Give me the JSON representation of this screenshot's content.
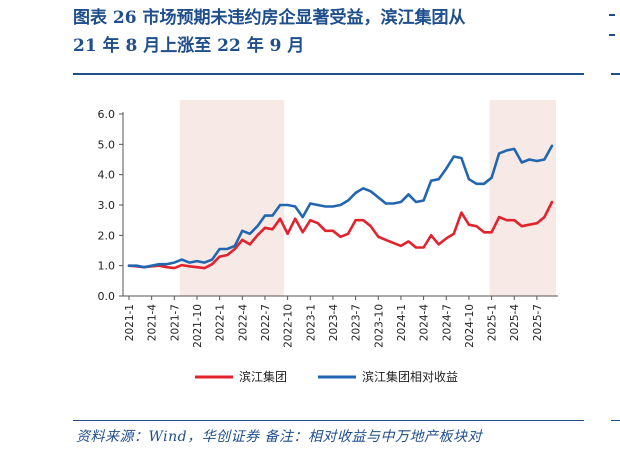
{
  "report": {
    "title_line1": "图表 26   市场预期未违约房企显著受益，滨江集团从",
    "title_line2": "21 年 8 月上涨至 22 年 9 月",
    "source": "资料来源：Wind，华创证券   备注：相对收益与中万地产板块对"
  },
  "colors": {
    "brand": "#1f4e8c",
    "series_red": "#e2232d",
    "series_blue": "#2166b0",
    "shade": "#f7e9e6",
    "axis": "#555555"
  },
  "chart_data": {
    "type": "line",
    "title": "",
    "xlabel": "",
    "ylabel": "",
    "ylim": [
      0,
      6
    ],
    "yticks": [
      "0.0",
      "1.0",
      "2.0",
      "3.0",
      "4.0",
      "5.0",
      "6.0"
    ],
    "xtick_labels": [
      "2021-1",
      "2021-4",
      "2021-7",
      "2021-10",
      "2022-1",
      "2022-4",
      "2022-7",
      "2022-10",
      "2023-1",
      "2023-4",
      "2023-7",
      "2023-10",
      "2024-1",
      "2024-4",
      "2024-7",
      "2024-10",
      "2025-1",
      "2025-4",
      "2025-7"
    ],
    "grid": false,
    "legend_position": "bottom",
    "x": [
      "2021-01",
      "2021-02",
      "2021-03",
      "2021-04",
      "2021-05",
      "2021-06",
      "2021-07",
      "2021-08",
      "2021-09",
      "2021-10",
      "2021-11",
      "2021-12",
      "2022-01",
      "2022-02",
      "2022-03",
      "2022-04",
      "2022-05",
      "2022-06",
      "2022-07",
      "2022-08",
      "2022-09",
      "2022-10",
      "2022-11",
      "2022-12",
      "2023-01",
      "2023-02",
      "2023-03",
      "2023-04",
      "2023-05",
      "2023-06",
      "2023-07",
      "2023-08",
      "2023-09",
      "2023-10",
      "2023-11",
      "2023-12",
      "2024-01",
      "2024-02",
      "2024-03",
      "2024-04",
      "2024-05",
      "2024-06",
      "2024-07",
      "2024-08",
      "2024-09",
      "2024-10",
      "2024-11",
      "2024-12",
      "2025-01",
      "2025-02",
      "2025-03",
      "2025-04",
      "2025-05",
      "2025-06",
      "2025-07",
      "2025-08",
      "2025-09"
    ],
    "shaded_ranges": [
      [
        "2021-08",
        "2022-09"
      ],
      [
        "2025-01",
        "2025-09"
      ]
    ],
    "series": [
      {
        "name": "滨江集团",
        "color": "#e2232d",
        "values": [
          1.0,
          0.98,
          0.95,
          0.98,
          1.0,
          0.95,
          0.92,
          1.02,
          0.98,
          0.95,
          0.92,
          1.05,
          1.3,
          1.35,
          1.55,
          1.85,
          1.7,
          2.0,
          2.25,
          2.2,
          2.55,
          2.05,
          2.55,
          2.1,
          2.5,
          2.4,
          2.15,
          2.15,
          1.95,
          2.05,
          2.5,
          2.5,
          2.3,
          1.95,
          1.85,
          1.75,
          1.65,
          1.8,
          1.6,
          1.6,
          2.0,
          1.7,
          1.9,
          2.05,
          2.75,
          2.35,
          2.3,
          2.1,
          2.1,
          2.6,
          2.5,
          2.5,
          2.3,
          2.35,
          2.4,
          2.6,
          3.1
        ]
      },
      {
        "name": "滨江集团相对收益",
        "color": "#2166b0",
        "values": [
          1.0,
          1.0,
          0.95,
          1.0,
          1.05,
          1.05,
          1.1,
          1.2,
          1.1,
          1.15,
          1.1,
          1.2,
          1.55,
          1.55,
          1.65,
          2.15,
          2.05,
          2.3,
          2.65,
          2.65,
          3.0,
          3.0,
          2.95,
          2.6,
          3.05,
          3.0,
          2.95,
          2.95,
          3.0,
          3.15,
          3.4,
          3.55,
          3.45,
          3.25,
          3.05,
          3.05,
          3.1,
          3.35,
          3.1,
          3.15,
          3.8,
          3.85,
          4.2,
          4.6,
          4.55,
          3.85,
          3.7,
          3.7,
          3.9,
          4.7,
          4.8,
          4.85,
          4.4,
          4.5,
          4.45,
          4.5,
          4.95
        ]
      }
    ]
  }
}
